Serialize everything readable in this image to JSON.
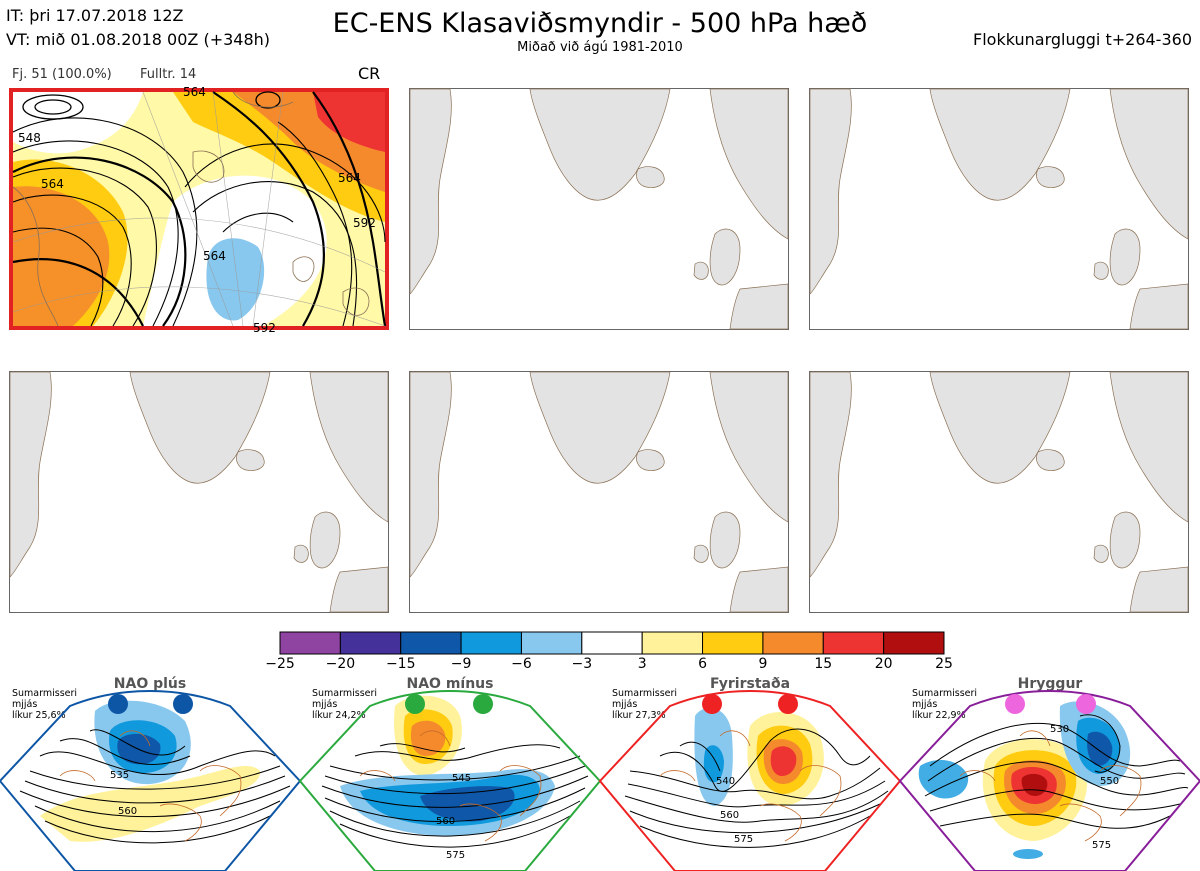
{
  "header": {
    "it": "IT: þri 17.07.2018 12Z",
    "vt": "VT: mið 01.08.2018 00Z  (+348h)",
    "title": "EC-ENS Klasaviðsmyndir - 500 hPa hæð",
    "subtitle": "Miðað við ágú 1981-2010",
    "window": "Flokkunargluggi t+264-360"
  },
  "main_panel": {
    "members": "Fj. 51 (100.0%)",
    "representative": "Fulltr. 14",
    "regime": "CR",
    "border_color": "#e22222",
    "contour_labels": [
      "548",
      "564",
      "564",
      "564",
      "592",
      "592",
      "564"
    ]
  },
  "chart_data": {
    "type": "heatmap",
    "title": "EC-ENS Klasaviðsmyndir - 500 hPa hæð",
    "colorbar": {
      "ticks": [
        -25,
        -20,
        -15,
        -9,
        -6,
        -3,
        3,
        6,
        9,
        15,
        20,
        25
      ],
      "colors": [
        "#8e44a0",
        "#44319a",
        "#0f57a8",
        "#1199dd",
        "#88c8ee",
        "#ffffff",
        "#fff29a",
        "#ffcc11",
        "#f58a2c",
        "#ee3333",
        "#b10f0f"
      ]
    },
    "regimes": [
      {
        "name": "NAO plús",
        "season": "Sumarmisseri",
        "period": "mjjás",
        "likelihood": "líkur 25,6%",
        "marker_color": "#0d56a6",
        "border_color": "#0d56a6",
        "contour_labels": [
          "535",
          "560"
        ]
      },
      {
        "name": "NAO mínus",
        "season": "Sumarmisseri",
        "period": "mjjás",
        "likelihood": "líkur 24,2%",
        "marker_color": "#2aaa3e",
        "border_color": "#2aaa3e",
        "contour_labels": [
          "545",
          "560",
          "575"
        ]
      },
      {
        "name": "Fyrirstaða",
        "season": "Sumarmisseri",
        "period": "mjjás",
        "likelihood": "líkur 27,3%",
        "marker_color": "#ee2222",
        "border_color": "#ee2222",
        "contour_labels": [
          "540",
          "560",
          "575"
        ]
      },
      {
        "name": "Hryggur",
        "season": "Sumarmisseri",
        "period": "mjjás",
        "likelihood": "líkur 22,9%",
        "marker_color": "#ee66dd",
        "border_color": "#881e99",
        "contour_labels": [
          "530",
          "550",
          "575"
        ]
      }
    ]
  }
}
